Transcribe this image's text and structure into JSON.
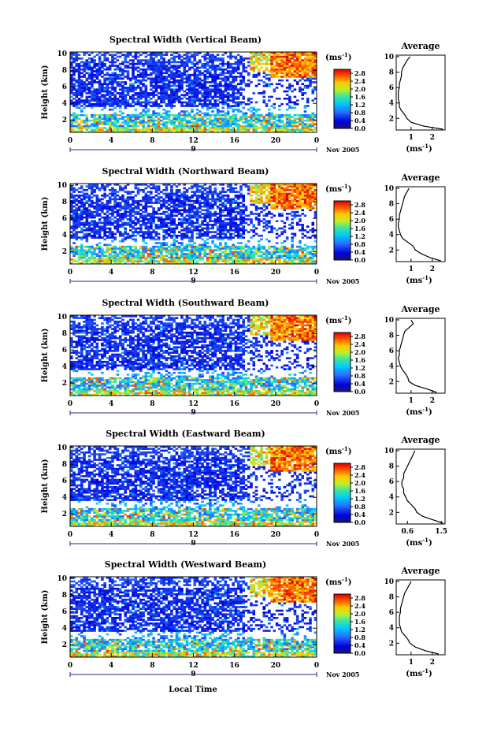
{
  "figure": {
    "xlabel_bottom": "Local Time",
    "date_label": "Nov 2005",
    "day_marker": "9",
    "colorbar_unit": "(ms",
    "colorbar_unit_exp": "-1",
    "avg_title": "Average",
    "avg_xlabel": "(ms",
    "avg_xlabel_exp": "-1"
  },
  "chart_data": [
    {
      "type": "heatmap",
      "title": "Spectral Width (Vertical Beam)",
      "ylabel": "Height (km)",
      "xticks": [
        "0",
        "4",
        "8",
        "12",
        "16",
        "20",
        "0"
      ],
      "yticks": [
        "2",
        "4",
        "6",
        "8",
        "10"
      ],
      "xlim": [
        0,
        24
      ],
      "ylim": [
        0.5,
        10.2
      ],
      "colorbar_ticks": [
        "0.0",
        "0.4",
        "0.8",
        "1.2",
        "1.6",
        "2.0",
        "2.4",
        "2.8"
      ],
      "colorbar_range": [
        0,
        3.0
      ],
      "avg": {
        "title": "Average",
        "xticks": [
          "1",
          "2"
        ],
        "xlim": [
          0.3,
          2.6
        ],
        "profile": [
          [
            0.6,
            2.5
          ],
          [
            1.0,
            1.6
          ],
          [
            1.5,
            1.0
          ],
          [
            2.0,
            0.8
          ],
          [
            2.5,
            0.7
          ],
          [
            3.0,
            0.55
          ],
          [
            3.5,
            0.45
          ],
          [
            4.0,
            0.45
          ],
          [
            4.5,
            0.4
          ],
          [
            5.0,
            0.4
          ],
          [
            5.5,
            0.4
          ],
          [
            6.0,
            0.45
          ],
          [
            6.5,
            0.45
          ],
          [
            7.0,
            0.5
          ],
          [
            7.5,
            0.55
          ],
          [
            8.0,
            0.55
          ],
          [
            8.5,
            0.6
          ],
          [
            9.0,
            0.7
          ],
          [
            9.5,
            0.8
          ],
          [
            10.0,
            0.95
          ]
        ]
      }
    },
    {
      "type": "heatmap",
      "title": "Spectral Width (Northward Beam)",
      "ylabel": "Height (km)",
      "xticks": [
        "0",
        "4",
        "8",
        "12",
        "16",
        "20",
        "0"
      ],
      "yticks": [
        "2",
        "4",
        "6",
        "8",
        "10"
      ],
      "xlim": [
        0,
        24
      ],
      "ylim": [
        0.5,
        10.2
      ],
      "colorbar_ticks": [
        "0.0",
        "0.4",
        "0.8",
        "1.2",
        "1.6",
        "2.0",
        "2.4",
        "2.8"
      ],
      "colorbar_range": [
        0,
        3.0
      ],
      "avg": {
        "title": "Average",
        "xticks": [
          "1",
          "2"
        ],
        "xlim": [
          0.3,
          2.6
        ],
        "profile": [
          [
            0.6,
            2.4
          ],
          [
            1.0,
            1.9
          ],
          [
            1.5,
            1.5
          ],
          [
            2.0,
            1.2
          ],
          [
            2.5,
            1.1
          ],
          [
            3.0,
            0.85
          ],
          [
            3.5,
            0.6
          ],
          [
            4.0,
            0.5
          ],
          [
            4.5,
            0.45
          ],
          [
            5.0,
            0.4
          ],
          [
            5.5,
            0.4
          ],
          [
            6.0,
            0.45
          ],
          [
            6.5,
            0.45
          ],
          [
            7.0,
            0.5
          ],
          [
            7.5,
            0.55
          ],
          [
            8.0,
            0.6
          ],
          [
            8.5,
            0.65
          ],
          [
            9.0,
            0.7
          ],
          [
            9.5,
            0.8
          ],
          [
            10.0,
            0.9
          ]
        ]
      }
    },
    {
      "type": "heatmap",
      "title": "Spectral Width (Southward Beam)",
      "ylabel": "Height (km)",
      "xticks": [
        "0",
        "4",
        "8",
        "12",
        "16",
        "20",
        "0"
      ],
      "yticks": [
        "2",
        "4",
        "6",
        "8",
        "10"
      ],
      "xlim": [
        0,
        24
      ],
      "ylim": [
        0.5,
        10.2
      ],
      "colorbar_ticks": [
        "0.0",
        "0.4",
        "0.8",
        "1.2",
        "1.6",
        "2.0",
        "2.4",
        "2.8"
      ],
      "colorbar_range": [
        0,
        3.0
      ],
      "avg": {
        "title": "Average",
        "xticks": [
          "1",
          "2"
        ],
        "xlim": [
          0.3,
          2.6
        ],
        "profile": [
          [
            0.6,
            2.2
          ],
          [
            1.0,
            1.8
          ],
          [
            1.5,
            1.2
          ],
          [
            2.0,
            0.9
          ],
          [
            2.5,
            0.85
          ],
          [
            3.0,
            0.75
          ],
          [
            3.5,
            0.6
          ],
          [
            4.0,
            0.5
          ],
          [
            4.5,
            0.45
          ],
          [
            5.0,
            0.4
          ],
          [
            5.5,
            0.45
          ],
          [
            6.0,
            0.45
          ],
          [
            6.5,
            0.5
          ],
          [
            7.0,
            0.55
          ],
          [
            7.5,
            0.6
          ],
          [
            8.0,
            0.65
          ],
          [
            8.5,
            0.7
          ],
          [
            9.0,
            0.9
          ],
          [
            9.5,
            1.1
          ],
          [
            10.0,
            1.0
          ]
        ]
      }
    },
    {
      "type": "heatmap",
      "title": "Spectral Width (Eastward Beam)",
      "ylabel": "Height (km)",
      "xticks": [
        "0",
        "4",
        "8",
        "12",
        "16",
        "20",
        "0"
      ],
      "yticks": [
        "2",
        "4",
        "6",
        "8",
        "10"
      ],
      "xlim": [
        0,
        24
      ],
      "ylim": [
        0.5,
        10.2
      ],
      "colorbar_ticks": [
        "0.0",
        "0.4",
        "0.8",
        "1.2",
        "1.6",
        "2.0",
        "2.4",
        "2.8"
      ],
      "colorbar_range": [
        0,
        3.0
      ],
      "avg": {
        "title": "Average",
        "xticks": [
          "0.6",
          "1.5"
        ],
        "xlim": [
          0.3,
          1.6
        ],
        "profile": [
          [
            0.6,
            1.55
          ],
          [
            1.0,
            1.3
          ],
          [
            1.5,
            1.0
          ],
          [
            2.0,
            0.85
          ],
          [
            2.5,
            0.8
          ],
          [
            3.0,
            0.7
          ],
          [
            3.5,
            0.6
          ],
          [
            4.0,
            0.55
          ],
          [
            4.5,
            0.5
          ],
          [
            5.0,
            0.5
          ],
          [
            5.5,
            0.45
          ],
          [
            6.0,
            0.45
          ],
          [
            6.5,
            0.5
          ],
          [
            7.0,
            0.5
          ],
          [
            7.5,
            0.55
          ],
          [
            8.0,
            0.6
          ],
          [
            8.5,
            0.65
          ],
          [
            9.0,
            0.7
          ],
          [
            9.5,
            0.75
          ],
          [
            10.0,
            0.8
          ]
        ]
      }
    },
    {
      "type": "heatmap",
      "title": "Spectral Width (Westward Beam)",
      "ylabel": "Height (km)",
      "xticks": [
        "0",
        "4",
        "8",
        "12",
        "16",
        "20",
        "0"
      ],
      "yticks": [
        "2",
        "4",
        "6",
        "8",
        "10"
      ],
      "xlim": [
        0,
        24
      ],
      "ylim": [
        0.5,
        10.2
      ],
      "colorbar_ticks": [
        "0.0",
        "0.4",
        "0.8",
        "1.2",
        "1.6",
        "2.0",
        "2.4",
        "2.8"
      ],
      "colorbar_range": [
        0,
        3.0
      ],
      "avg": {
        "title": "Average",
        "xticks": [
          "1",
          "2"
        ],
        "xlim": [
          0.3,
          2.6
        ],
        "profile": [
          [
            0.6,
            2.3
          ],
          [
            1.0,
            1.7
          ],
          [
            1.5,
            1.2
          ],
          [
            2.0,
            0.95
          ],
          [
            2.5,
            0.85
          ],
          [
            3.0,
            0.7
          ],
          [
            3.5,
            0.55
          ],
          [
            4.0,
            0.5
          ],
          [
            4.5,
            0.45
          ],
          [
            5.0,
            0.45
          ],
          [
            5.5,
            0.45
          ],
          [
            6.0,
            0.5
          ],
          [
            6.5,
            0.5
          ],
          [
            7.0,
            0.55
          ],
          [
            7.5,
            0.6
          ],
          [
            8.0,
            0.65
          ],
          [
            8.5,
            0.7
          ],
          [
            9.0,
            0.8
          ],
          [
            9.5,
            0.9
          ],
          [
            10.0,
            1.0
          ]
        ]
      }
    }
  ]
}
